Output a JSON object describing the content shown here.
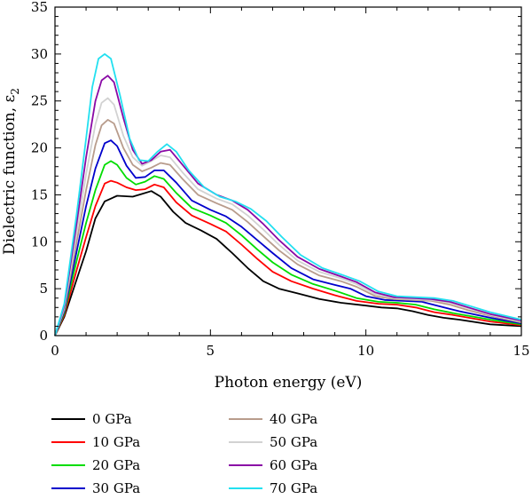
{
  "chart_data": {
    "type": "line",
    "xlabel": "Photon energy (eV)",
    "ylabel": "Dielectric function, ε",
    "ylabel_sub": "2",
    "xlim": [
      0,
      15
    ],
    "ylim": [
      0,
      35
    ],
    "x_ticks": [
      "0",
      "5",
      "10",
      "15"
    ],
    "y_ticks": [
      "0",
      "5",
      "10",
      "15",
      "20",
      "25",
      "30",
      "35"
    ],
    "grid": false,
    "legend_position": "bottom",
    "series": [
      {
        "name": "0 GPa",
        "color": "#000000",
        "points": [
          [
            0,
            0
          ],
          [
            0.3,
            2
          ],
          [
            0.7,
            6
          ],
          [
            1.0,
            9
          ],
          [
            1.3,
            12.5
          ],
          [
            1.6,
            14.3
          ],
          [
            2.0,
            14.9
          ],
          [
            2.5,
            14.8
          ],
          [
            2.8,
            15.1
          ],
          [
            3.1,
            15.4
          ],
          [
            3.4,
            14.8
          ],
          [
            3.8,
            13.2
          ],
          [
            4.2,
            12
          ],
          [
            4.7,
            11.2
          ],
          [
            5.2,
            10.3
          ],
          [
            5.7,
            8.8
          ],
          [
            6.2,
            7.2
          ],
          [
            6.7,
            5.8
          ],
          [
            7.2,
            5
          ],
          [
            7.8,
            4.5
          ],
          [
            8.5,
            3.9
          ],
          [
            9.2,
            3.5
          ],
          [
            10.0,
            3.2
          ],
          [
            10.5,
            3.0
          ],
          [
            11.0,
            2.9
          ],
          [
            11.5,
            2.6
          ],
          [
            12.0,
            2.2
          ],
          [
            12.5,
            1.9
          ],
          [
            13.0,
            1.7
          ],
          [
            14.0,
            1.2
          ],
          [
            15,
            1.0
          ]
        ]
      },
      {
        "name": "10 GPa",
        "color": "#ff0000",
        "points": [
          [
            0,
            0
          ],
          [
            0.3,
            2.2
          ],
          [
            0.7,
            7
          ],
          [
            1.0,
            10.5
          ],
          [
            1.3,
            13.8
          ],
          [
            1.6,
            16.2
          ],
          [
            1.8,
            16.5
          ],
          [
            2.0,
            16.3
          ],
          [
            2.3,
            15.8
          ],
          [
            2.6,
            15.5
          ],
          [
            2.9,
            15.6
          ],
          [
            3.2,
            16.1
          ],
          [
            3.5,
            15.8
          ],
          [
            3.9,
            14.2
          ],
          [
            4.4,
            12.8
          ],
          [
            5.0,
            11.9
          ],
          [
            5.5,
            11.1
          ],
          [
            6.0,
            9.7
          ],
          [
            6.5,
            8.2
          ],
          [
            7.0,
            6.8
          ],
          [
            7.6,
            5.8
          ],
          [
            8.3,
            5.0
          ],
          [
            9.0,
            4.3
          ],
          [
            9.7,
            3.7
          ],
          [
            10.4,
            3.4
          ],
          [
            11.0,
            3.3
          ],
          [
            11.6,
            3.0
          ],
          [
            12.2,
            2.5
          ],
          [
            12.8,
            2.2
          ],
          [
            14.0,
            1.5
          ],
          [
            15,
            1.1
          ]
        ]
      },
      {
        "name": "20 GPa",
        "color": "#00dd00",
        "points": [
          [
            0,
            0
          ],
          [
            0.3,
            2.4
          ],
          [
            0.7,
            8
          ],
          [
            1.0,
            12
          ],
          [
            1.3,
            15.5
          ],
          [
            1.6,
            18.2
          ],
          [
            1.8,
            18.6
          ],
          [
            2.0,
            18.2
          ],
          [
            2.3,
            16.8
          ],
          [
            2.6,
            16.1
          ],
          [
            2.9,
            16.4
          ],
          [
            3.2,
            17.0
          ],
          [
            3.5,
            16.7
          ],
          [
            3.9,
            15.2
          ],
          [
            4.4,
            13.6
          ],
          [
            5.0,
            12.8
          ],
          [
            5.5,
            12.0
          ],
          [
            6.0,
            10.7
          ],
          [
            6.5,
            9.2
          ],
          [
            7.0,
            7.8
          ],
          [
            7.6,
            6.5
          ],
          [
            8.3,
            5.5
          ],
          [
            9.0,
            4.8
          ],
          [
            9.7,
            4.0
          ],
          [
            10.4,
            3.6
          ],
          [
            11.0,
            3.5
          ],
          [
            11.6,
            3.3
          ],
          [
            12.2,
            2.8
          ],
          [
            12.8,
            2.4
          ],
          [
            14.0,
            1.7
          ],
          [
            15,
            1.2
          ]
        ]
      },
      {
        "name": "30 GPa",
        "color": "#0000cc",
        "points": [
          [
            0,
            0
          ],
          [
            0.3,
            2.6
          ],
          [
            0.7,
            9
          ],
          [
            1.0,
            13.8
          ],
          [
            1.3,
            17.8
          ],
          [
            1.6,
            20.5
          ],
          [
            1.8,
            20.8
          ],
          [
            2.0,
            20.2
          ],
          [
            2.3,
            18.1
          ],
          [
            2.6,
            16.8
          ],
          [
            2.9,
            16.9
          ],
          [
            3.2,
            17.6
          ],
          [
            3.5,
            17.6
          ],
          [
            3.9,
            16.3
          ],
          [
            4.4,
            14.4
          ],
          [
            5.0,
            13.4
          ],
          [
            5.5,
            12.7
          ],
          [
            6.0,
            11.6
          ],
          [
            6.5,
            10.2
          ],
          [
            7.0,
            8.8
          ],
          [
            7.6,
            7.2
          ],
          [
            8.3,
            6.0
          ],
          [
            9.0,
            5.4
          ],
          [
            9.5,
            5.0
          ],
          [
            10.0,
            4.2
          ],
          [
            10.6,
            3.8
          ],
          [
            11.2,
            3.7
          ],
          [
            11.8,
            3.6
          ],
          [
            12.4,
            3.1
          ],
          [
            13.0,
            2.6
          ],
          [
            14.0,
            1.9
          ],
          [
            15,
            1.3
          ]
        ]
      },
      {
        "name": "40 GPa",
        "color": "#b89c8c",
        "points": [
          [
            0,
            0
          ],
          [
            0.3,
            2.8
          ],
          [
            0.7,
            10
          ],
          [
            1.0,
            15.5
          ],
          [
            1.3,
            20.3
          ],
          [
            1.5,
            22.4
          ],
          [
            1.7,
            23.0
          ],
          [
            1.9,
            22.6
          ],
          [
            2.2,
            20.0
          ],
          [
            2.5,
            18.2
          ],
          [
            2.8,
            17.5
          ],
          [
            3.1,
            17.9
          ],
          [
            3.4,
            18.4
          ],
          [
            3.7,
            18.2
          ],
          [
            4.1,
            16.7
          ],
          [
            4.6,
            15.0
          ],
          [
            5.2,
            14.1
          ],
          [
            5.7,
            13.4
          ],
          [
            6.2,
            12.1
          ],
          [
            6.7,
            10.6
          ],
          [
            7.2,
            9.1
          ],
          [
            7.8,
            7.6
          ],
          [
            8.5,
            6.4
          ],
          [
            9.2,
            5.8
          ],
          [
            9.7,
            5.2
          ],
          [
            10.3,
            4.2
          ],
          [
            10.9,
            3.9
          ],
          [
            11.5,
            3.8
          ],
          [
            12.1,
            3.7
          ],
          [
            12.7,
            3.3
          ],
          [
            13.3,
            2.7
          ],
          [
            14.0,
            2.1
          ],
          [
            15,
            1.4
          ]
        ]
      },
      {
        "name": "50 GPa",
        "color": "#d2d2d2",
        "points": [
          [
            0,
            0
          ],
          [
            0.3,
            3.0
          ],
          [
            0.7,
            11
          ],
          [
            1.0,
            17.2
          ],
          [
            1.3,
            22.5
          ],
          [
            1.5,
            24.8
          ],
          [
            1.7,
            25.3
          ],
          [
            1.9,
            24.6
          ],
          [
            2.2,
            21.3
          ],
          [
            2.5,
            19.0
          ],
          [
            2.8,
            18.1
          ],
          [
            3.1,
            18.6
          ],
          [
            3.4,
            19.2
          ],
          [
            3.7,
            19.0
          ],
          [
            4.1,
            17.4
          ],
          [
            4.6,
            15.6
          ],
          [
            5.2,
            14.6
          ],
          [
            5.7,
            14.0
          ],
          [
            6.2,
            12.8
          ],
          [
            6.7,
            11.3
          ],
          [
            7.2,
            9.7
          ],
          [
            7.8,
            8.0
          ],
          [
            8.5,
            6.8
          ],
          [
            9.2,
            6.1
          ],
          [
            9.7,
            5.5
          ],
          [
            10.3,
            4.4
          ],
          [
            10.9,
            4.0
          ],
          [
            11.5,
            3.9
          ],
          [
            12.1,
            3.8
          ],
          [
            12.7,
            3.5
          ],
          [
            13.3,
            2.9
          ],
          [
            14.0,
            2.2
          ],
          [
            15,
            1.5
          ]
        ]
      },
      {
        "name": "60 GPa",
        "color": "#8a0aa6",
        "points": [
          [
            0,
            0
          ],
          [
            0.3,
            3.2
          ],
          [
            0.7,
            12
          ],
          [
            1.0,
            19
          ],
          [
            1.3,
            25
          ],
          [
            1.5,
            27.2
          ],
          [
            1.7,
            27.7
          ],
          [
            1.9,
            27.0
          ],
          [
            2.2,
            23.2
          ],
          [
            2.5,
            19.8
          ],
          [
            2.8,
            18.3
          ],
          [
            3.1,
            18.7
          ],
          [
            3.4,
            19.6
          ],
          [
            3.7,
            19.8
          ],
          [
            4.1,
            18.2
          ],
          [
            4.6,
            16.2
          ],
          [
            5.2,
            15.0
          ],
          [
            5.7,
            14.4
          ],
          [
            6.2,
            13.4
          ],
          [
            6.7,
            11.9
          ],
          [
            7.2,
            10.2
          ],
          [
            7.8,
            8.4
          ],
          [
            8.5,
            7.1
          ],
          [
            9.2,
            6.3
          ],
          [
            9.7,
            5.7
          ],
          [
            10.3,
            4.6
          ],
          [
            10.9,
            4.1
          ],
          [
            11.5,
            4.0
          ],
          [
            12.1,
            3.9
          ],
          [
            12.7,
            3.6
          ],
          [
            13.3,
            3.0
          ],
          [
            14.0,
            2.3
          ],
          [
            15,
            1.6
          ]
        ]
      },
      {
        "name": "70 GPa",
        "color": "#22e0f0",
        "points": [
          [
            0,
            0
          ],
          [
            0.3,
            3.4
          ],
          [
            0.7,
            13
          ],
          [
            1.0,
            21
          ],
          [
            1.2,
            26.5
          ],
          [
            1.4,
            29.5
          ],
          [
            1.6,
            30.0
          ],
          [
            1.8,
            29.5
          ],
          [
            2.1,
            25.5
          ],
          [
            2.4,
            21.0
          ],
          [
            2.7,
            18.7
          ],
          [
            3.0,
            18.6
          ],
          [
            3.3,
            19.6
          ],
          [
            3.6,
            20.4
          ],
          [
            3.9,
            19.6
          ],
          [
            4.3,
            17.6
          ],
          [
            4.8,
            15.8
          ],
          [
            5.3,
            14.8
          ],
          [
            5.8,
            14.3
          ],
          [
            6.3,
            13.5
          ],
          [
            6.8,
            12.2
          ],
          [
            7.3,
            10.5
          ],
          [
            7.9,
            8.6
          ],
          [
            8.6,
            7.2
          ],
          [
            9.3,
            6.4
          ],
          [
            9.8,
            5.8
          ],
          [
            10.4,
            4.7
          ],
          [
            11.0,
            4.2
          ],
          [
            11.6,
            4.1
          ],
          [
            12.2,
            4.0
          ],
          [
            12.8,
            3.7
          ],
          [
            13.4,
            3.1
          ],
          [
            14.0,
            2.5
          ],
          [
            15,
            1.7
          ]
        ]
      }
    ]
  }
}
